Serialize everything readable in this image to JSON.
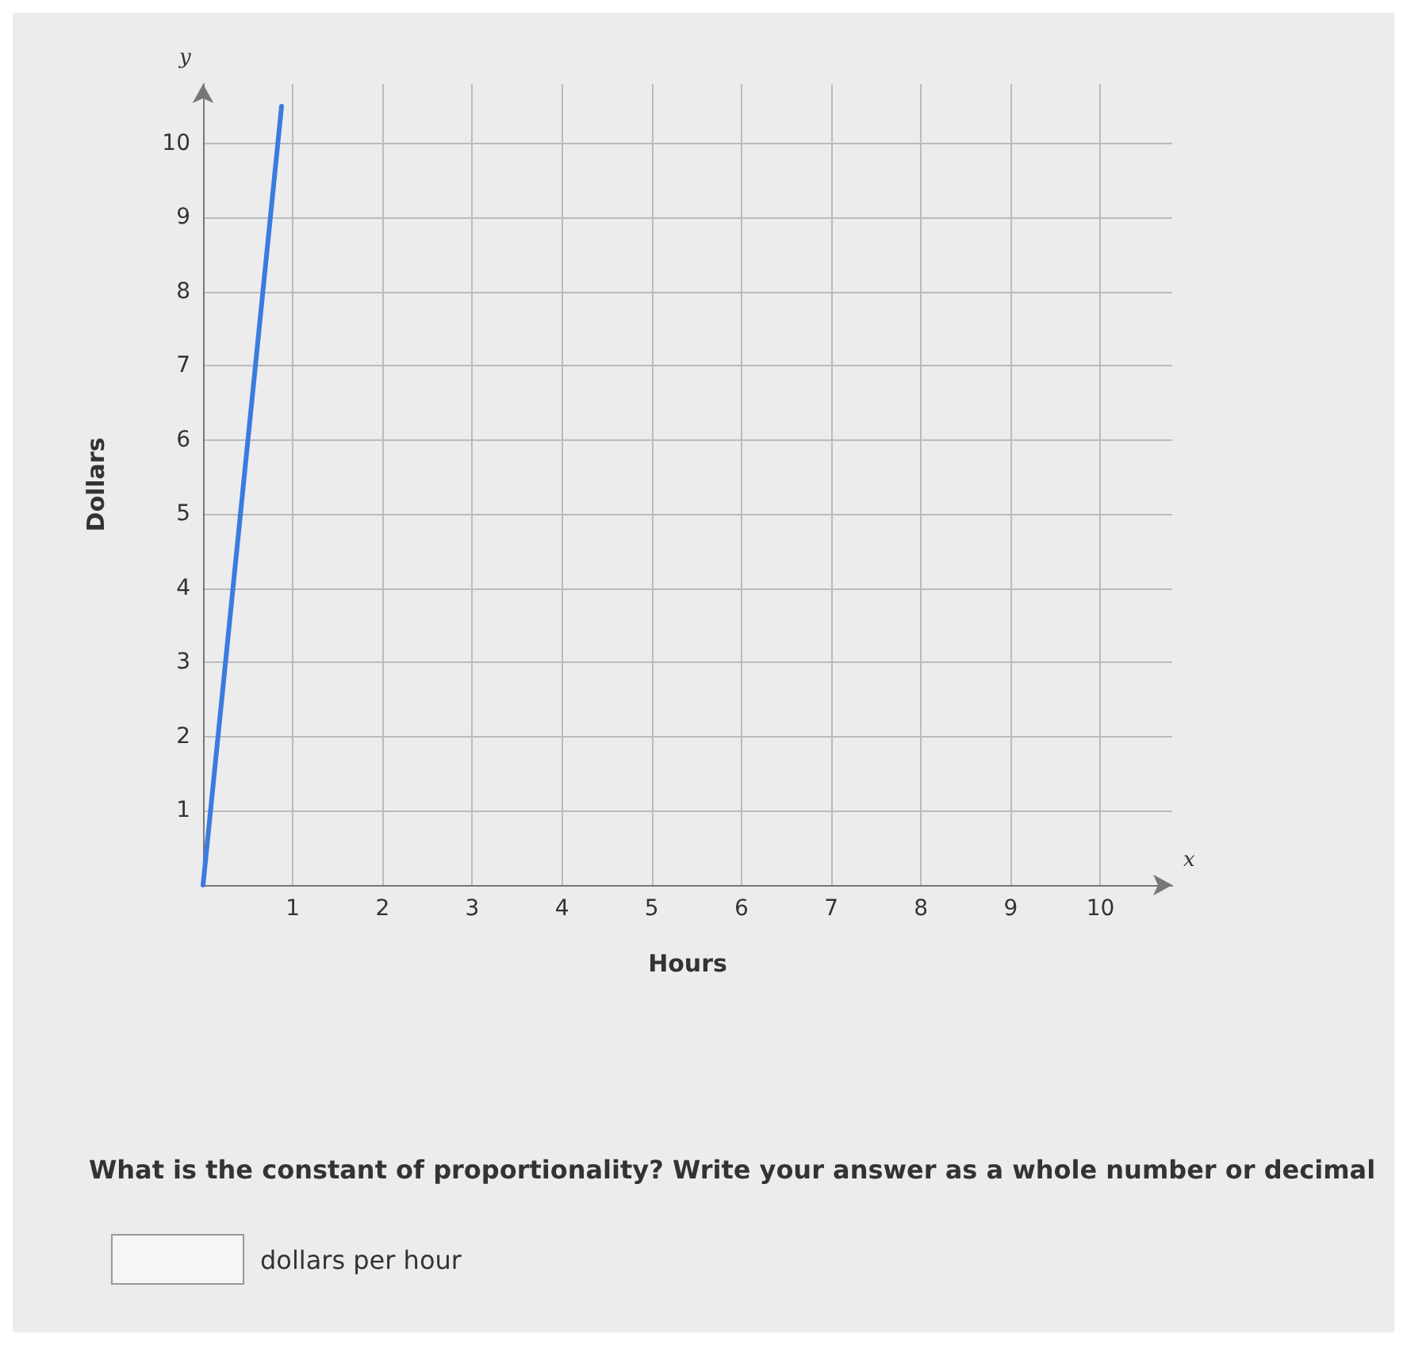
{
  "chart_data": {
    "type": "line",
    "xlabel": "Hours",
    "ylabel": "Dollars",
    "x": [
      0,
      0.875
    ],
    "series": [
      {
        "color": "#3b7be0",
        "values": [
          0,
          10.5
        ]
      }
    ],
    "xlim": [
      0,
      10.8
    ],
    "ylim": [
      0,
      10.8
    ],
    "xticks": [
      1,
      2,
      3,
      4,
      5,
      6,
      7,
      8,
      9,
      10
    ],
    "yticks": [
      1,
      2,
      3,
      4,
      5,
      6,
      7,
      8,
      9,
      10
    ],
    "grid": true,
    "marker": "none",
    "line_style": "solid",
    "annotations": [
      "y",
      "x",
      "What is the constant of proportionality? Write your answer as a whole number or decimal",
      "dollars per hour"
    ]
  }
}
